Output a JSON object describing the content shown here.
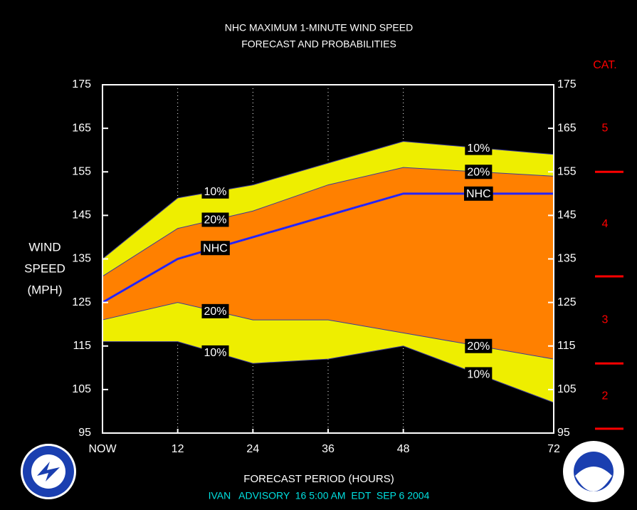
{
  "chart_data": {
    "type": "area",
    "title": "NHC MAXIMUM 1-MINUTE WIND SPEED",
    "subtitle": "FORECAST AND PROBABILITIES",
    "ylabel": [
      "WIND",
      "SPEED",
      "(MPH)"
    ],
    "xlabel": "FORECAST PERIOD (HOURS)",
    "footer": "IVAN   ADVISORY  16 5:00 AM  EDT  SEP 6 2004",
    "x": [
      0,
      12,
      24,
      36,
      48,
      72
    ],
    "xlim": [
      0,
      72
    ],
    "xticks": [
      {
        "value": 0,
        "label": "NOW"
      },
      12,
      24,
      36,
      48,
      72
    ],
    "ylim": [
      95,
      175
    ],
    "yticks": [
      95,
      105,
      115,
      125,
      135,
      145,
      155,
      165,
      175
    ],
    "grid": true,
    "series": [
      {
        "name": "10%",
        "color": "#eeee00",
        "values": [
          135,
          149,
          152,
          157,
          162,
          159
        ]
      },
      {
        "name": "20%",
        "color": "#ff8000",
        "values": [
          131,
          142,
          146,
          152,
          156,
          154
        ]
      },
      {
        "name": "NHC",
        "color": "#2424ff",
        "values": [
          125,
          135,
          140,
          145,
          150,
          150
        ]
      },
      {
        "name": "20%",
        "color": "#ff8000",
        "values": [
          121,
          125,
          121,
          121,
          118,
          112
        ]
      },
      {
        "name": "10%",
        "color": "#eeee00",
        "values": [
          116,
          116,
          111,
          112,
          115,
          102
        ]
      }
    ],
    "category_scale": {
      "title": "CAT.",
      "color": "#ff0000",
      "thresholds": [
        96,
        111,
        131,
        155
      ],
      "labels": [
        "2",
        "3",
        "4",
        "5"
      ]
    }
  }
}
